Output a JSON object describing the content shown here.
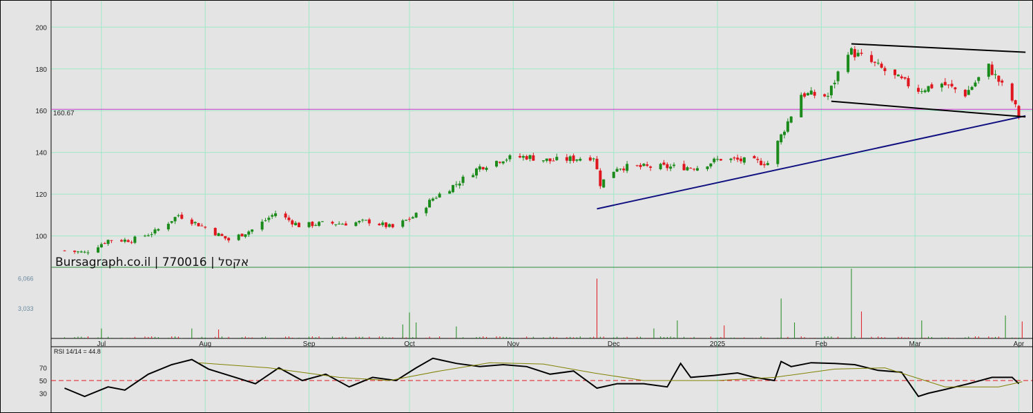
{
  "watermark": "Bursagraph.co.il | 770016 | אקסל",
  "chart_data": [
    {
      "type": "candlestick",
      "panel": "price",
      "ylim": [
        85,
        212
      ],
      "y_ticks": [
        "100",
        "120",
        "140",
        "160",
        "180",
        "200"
      ],
      "x_ticks": [
        "Jul",
        "Aug",
        "Sep",
        "Oct",
        "Nov",
        "Dec",
        "2025",
        "Feb",
        "Mar",
        "Apr"
      ],
      "horizontal_line": {
        "value": 160.67,
        "label": "160.67"
      },
      "close_series": [
        [
          "2024-06-20",
          93
        ],
        [
          "2024-06-26",
          92
        ],
        [
          "2024-07-03",
          98
        ],
        [
          "2024-07-10",
          98
        ],
        [
          "2024-07-17",
          102
        ],
        [
          "2024-07-24",
          110
        ],
        [
          "2024-08-01",
          104
        ],
        [
          "2024-08-08",
          98
        ],
        [
          "2024-08-15",
          103
        ],
        [
          "2024-08-22",
          111
        ],
        [
          "2024-08-29",
          105
        ],
        [
          "2024-09-05",
          106
        ],
        [
          "2024-09-12",
          106
        ],
        [
          "2024-09-19",
          107
        ],
        [
          "2024-09-26",
          104
        ],
        [
          "2024-10-03",
          110
        ],
        [
          "2024-10-08",
          118
        ],
        [
          "2024-10-15",
          125
        ],
        [
          "2024-10-22",
          133
        ],
        [
          "2024-10-29",
          137
        ],
        [
          "2024-11-05",
          138
        ],
        [
          "2024-11-12",
          136
        ],
        [
          "2024-11-19",
          137
        ],
        [
          "2024-11-25",
          138
        ],
        [
          "2024-11-27",
          125
        ],
        [
          "2024-12-02",
          133
        ],
        [
          "2024-12-10",
          133
        ],
        [
          "2024-12-18",
          133
        ],
        [
          "2024-12-26",
          133
        ],
        [
          "2025-01-02",
          137
        ],
        [
          "2025-01-09",
          136
        ],
        [
          "2025-01-16",
          135
        ],
        [
          "2025-01-20",
          148
        ],
        [
          "2025-01-26",
          168
        ],
        [
          "2025-02-03",
          167
        ],
        [
          "2025-02-09",
          189
        ],
        [
          "2025-02-16",
          183
        ],
        [
          "2025-02-23",
          176
        ],
        [
          "2025-03-02",
          170
        ],
        [
          "2025-03-09",
          173
        ],
        [
          "2025-03-16",
          168
        ],
        [
          "2025-03-23",
          181
        ],
        [
          "2025-03-30",
          165
        ],
        [
          "2025-04-01",
          158
        ]
      ],
      "trendlines": [
        {
          "color": "#101080",
          "from": [
            "2024-11-26",
            113
          ],
          "to": [
            "2025-04-03",
            157.5
          ]
        },
        {
          "color": "#000000",
          "from": [
            "2025-02-10",
            192
          ],
          "to": [
            "2025-04-03",
            188
          ]
        },
        {
          "color": "#000000",
          "from": [
            "2025-02-04",
            164.5
          ],
          "to": [
            "2025-04-03",
            157
          ]
        }
      ]
    },
    {
      "type": "bar",
      "panel": "volume",
      "y_ticks": [
        "6,066",
        "3,033"
      ],
      "ylim": [
        0,
        7000
      ],
      "bars": [
        [
          "2024-07-01",
          1000,
          "up"
        ],
        [
          "2024-07-28",
          1000,
          "up"
        ],
        [
          "2024-08-05",
          900,
          "down"
        ],
        [
          "2024-09-29",
          1400,
          "up"
        ],
        [
          "2024-10-01",
          2600,
          "up"
        ],
        [
          "2024-10-03",
          1600,
          "up"
        ],
        [
          "2024-10-15",
          1200,
          "up"
        ],
        [
          "2024-11-26",
          6000,
          "down"
        ],
        [
          "2024-12-13",
          1000,
          "up"
        ],
        [
          "2024-12-20",
          1800,
          "up"
        ],
        [
          "2025-01-03",
          1300,
          "down"
        ],
        [
          "2025-01-20",
          4000,
          "up"
        ],
        [
          "2025-01-24",
          1600,
          "up"
        ],
        [
          "2025-02-10",
          7000,
          "up"
        ],
        [
          "2025-02-13",
          2700,
          "down"
        ],
        [
          "2025-03-03",
          1800,
          "up"
        ],
        [
          "2025-03-28",
          2300,
          "up"
        ],
        [
          "2025-04-02",
          1700,
          "down"
        ]
      ]
    },
    {
      "type": "line",
      "panel": "rsi",
      "label": "RSI 14/14 = 44.8",
      "ylim": [
        0,
        100
      ],
      "y_ticks": [
        "70",
        "50",
        "30"
      ],
      "reference_line": 50,
      "series": [
        {
          "name": "RSI",
          "color": "#000000",
          "points": [
            [
              "2024-06-20",
              38
            ],
            [
              "2024-06-26",
              25
            ],
            [
              "2024-07-03",
              40
            ],
            [
              "2024-07-08",
              35
            ],
            [
              "2024-07-15",
              60
            ],
            [
              "2024-07-22",
              75
            ],
            [
              "2024-07-28",
              83
            ],
            [
              "2024-08-02",
              68
            ],
            [
              "2024-08-10",
              55
            ],
            [
              "2024-08-16",
              45
            ],
            [
              "2024-08-23",
              70
            ],
            [
              "2024-08-30",
              50
            ],
            [
              "2024-09-06",
              60
            ],
            [
              "2024-09-13",
              40
            ],
            [
              "2024-09-20",
              55
            ],
            [
              "2024-09-27",
              50
            ],
            [
              "2024-10-03",
              70
            ],
            [
              "2024-10-08",
              85
            ],
            [
              "2024-10-15",
              77
            ],
            [
              "2024-10-22",
              72
            ],
            [
              "2024-10-29",
              75
            ],
            [
              "2024-11-05",
              72
            ],
            [
              "2024-11-12",
              60
            ],
            [
              "2024-11-19",
              65
            ],
            [
              "2024-11-26",
              38
            ],
            [
              "2024-12-02",
              45
            ],
            [
              "2024-12-10",
              45
            ],
            [
              "2024-12-17",
              40
            ],
            [
              "2024-12-21",
              77
            ],
            [
              "2024-12-24",
              55
            ],
            [
              "2024-12-31",
              58
            ],
            [
              "2025-01-07",
              62
            ],
            [
              "2025-01-12",
              55
            ],
            [
              "2025-01-18",
              50
            ],
            [
              "2025-01-20",
              80
            ],
            [
              "2025-01-23",
              72
            ],
            [
              "2025-01-29",
              78
            ],
            [
              "2025-02-05",
              77
            ],
            [
              "2025-02-11",
              75
            ],
            [
              "2025-02-18",
              66
            ],
            [
              "2025-02-25",
              63
            ],
            [
              "2025-03-02",
              25
            ],
            [
              "2025-03-05",
              30
            ],
            [
              "2025-03-10",
              36
            ],
            [
              "2025-03-17",
              45
            ],
            [
              "2025-03-24",
              55
            ],
            [
              "2025-03-30",
              55
            ],
            [
              "2025-04-01",
              45
            ]
          ]
        },
        {
          "name": "MA",
          "color": "#808000",
          "points": [
            [
              "2024-07-30",
              78
            ],
            [
              "2024-08-20",
              70
            ],
            [
              "2024-09-10",
              55
            ],
            [
              "2024-09-25",
              50
            ],
            [
              "2024-10-10",
              65
            ],
            [
              "2024-10-25",
              78
            ],
            [
              "2024-11-10",
              76
            ],
            [
              "2024-11-25",
              62
            ],
            [
              "2024-12-10",
              50
            ],
            [
              "2025-01-01",
              50
            ],
            [
              "2025-01-18",
              55
            ],
            [
              "2025-02-05",
              68
            ],
            [
              "2025-02-20",
              70
            ],
            [
              "2025-03-10",
              40
            ],
            [
              "2025-03-26",
              40
            ],
            [
              "2025-04-02",
              48
            ]
          ]
        }
      ]
    }
  ]
}
